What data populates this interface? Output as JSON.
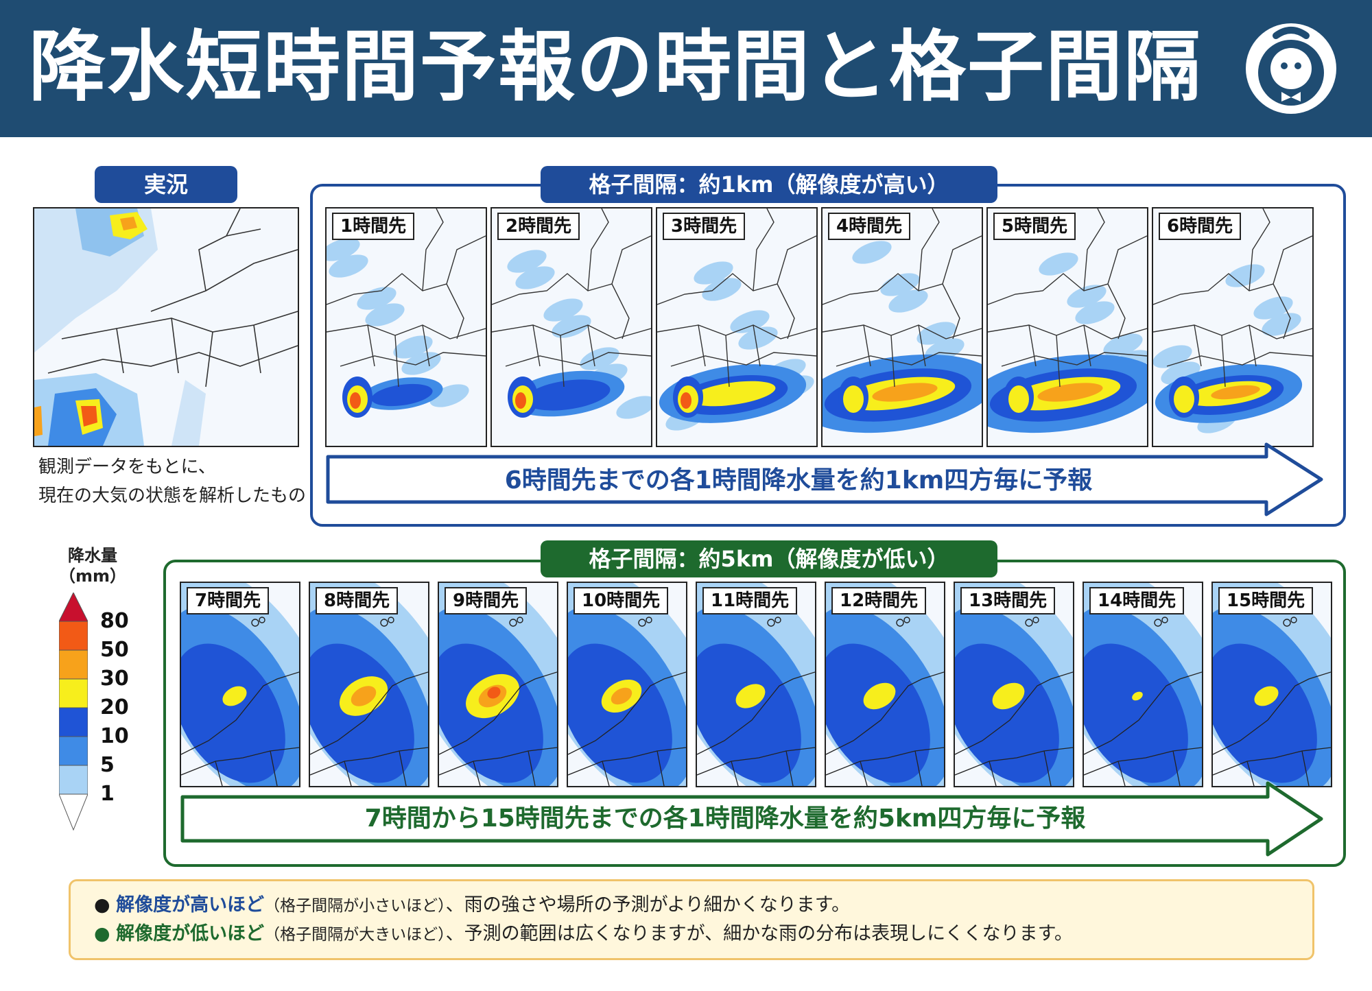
{
  "header": {
    "title": "降水短時間予報の時間と格子間隔"
  },
  "current": {
    "label": "実況",
    "caption_lines": [
      "観測データをもとに、",
      "現在の大気の状態を解析したもの"
    ]
  },
  "panel_1km": {
    "title": "格子間隔：約1km（解像度が高い）",
    "arrow_text": "6時間先までの各1時間降水量を約1km四方毎に予報",
    "maps": [
      {
        "label": "1時間先"
      },
      {
        "label": "2時間先"
      },
      {
        "label": "3時間先"
      },
      {
        "label": "4時間先"
      },
      {
        "label": "5時間先"
      },
      {
        "label": "6時間先"
      }
    ]
  },
  "panel_5km": {
    "title": "格子間隔：約5km（解像度が低い）",
    "arrow_text": "7時間から15時間先までの各1時間降水量を約5km四方毎に予報",
    "maps": [
      {
        "label": "7時間先"
      },
      {
        "label": "8時間先"
      },
      {
        "label": "9時間先"
      },
      {
        "label": "10時間先"
      },
      {
        "label": "11時間先"
      },
      {
        "label": "12時間先"
      },
      {
        "label": "13時間先"
      },
      {
        "label": "14時間先"
      },
      {
        "label": "15時間先"
      }
    ]
  },
  "legend": {
    "title_line1": "降水量",
    "title_line2": "（mm）",
    "levels": [
      {
        "value": "80",
        "color": "#c8102e"
      },
      {
        "value": "50",
        "color": "#f25a16"
      },
      {
        "value": "30",
        "color": "#f7a21b"
      },
      {
        "value": "20",
        "color": "#f7ee1c"
      },
      {
        "value": "10",
        "color": "#1f54d6"
      },
      {
        "value": "5",
        "color": "#3f8be6"
      },
      {
        "value": "1",
        "color": "#a9d3f5"
      }
    ]
  },
  "notes": [
    {
      "bullet_color": "#1a1a1a",
      "emph": "解像度が高いほど",
      "emph_color": "#1f4c9a",
      "paren": "（格子間隔が小さいほど）",
      "rest": "、雨の強さや場所の予測がより細かくなります。"
    },
    {
      "bullet_color": "#1e6a2e",
      "emph": "解像度が低いほど",
      "emph_color": "#1e6a2e",
      "paren": "（格子間隔が大きいほど）",
      "rest": "、予測の範囲は広くなりますが、細かな雨の分布は表現しにくくなります。"
    }
  ]
}
